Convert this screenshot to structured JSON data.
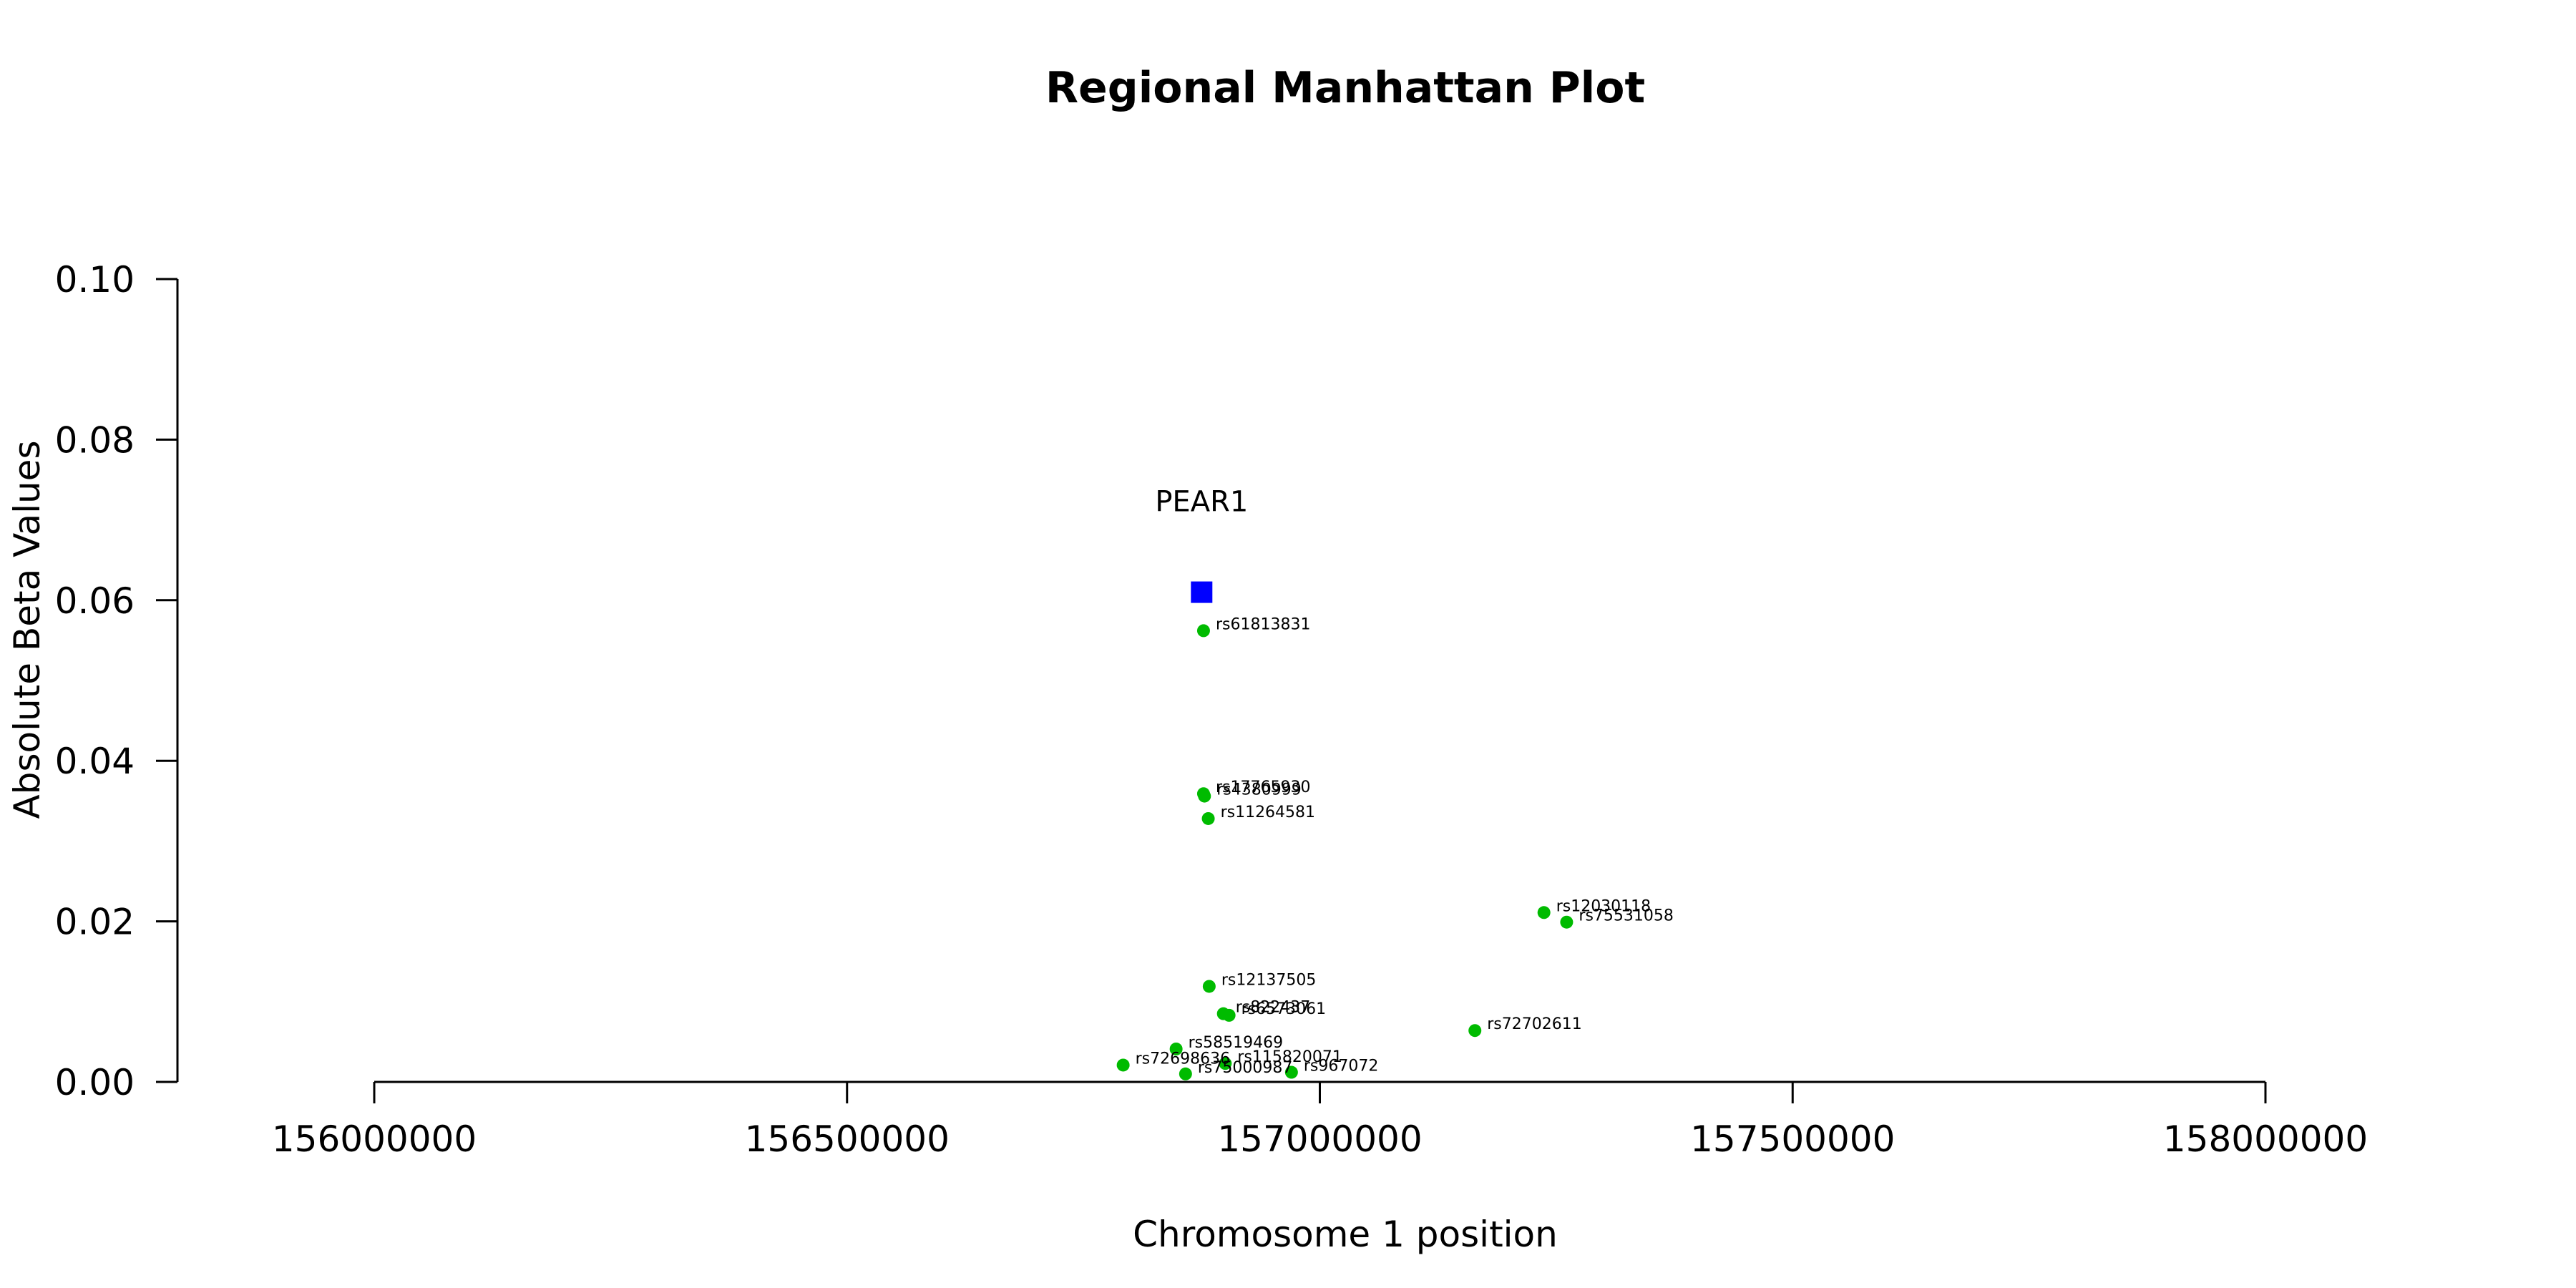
{
  "chart_data": {
    "type": "scatter",
    "title": "Regional Manhattan Plot",
    "xlabel": "Chromosome 1 position",
    "ylabel": "Absolute Beta Values",
    "xlim": [
      156000000,
      158000000
    ],
    "ylim": [
      0,
      0.1
    ],
    "x_ticks": [
      156000000,
      156500000,
      157000000,
      157500000,
      158000000
    ],
    "x_tick_labels": [
      "156000000",
      "156500000",
      "157000000",
      "157500000",
      "158000000"
    ],
    "y_ticks": [
      0,
      0.02,
      0.04,
      0.06,
      0.08,
      0.1
    ],
    "y_tick_labels": [
      "0.00",
      "0.02",
      "0.04",
      "0.06",
      "0.08",
      "0.10"
    ],
    "grid": false,
    "gene": {
      "label": "PEAR1",
      "x": 156875000,
      "y": 0.061,
      "color": "#0000ff",
      "marker": "square"
    },
    "snp_color": "#00bb00",
    "snps": [
      {
        "label": "rs61813831",
        "x": 156877000,
        "y": 0.0562
      },
      {
        "label": "rs17765930",
        "x": 156877000,
        "y": 0.0359
      },
      {
        "label": "rs4380999",
        "x": 156878000,
        "y": 0.0356
      },
      {
        "label": "rs11264581",
        "x": 156882000,
        "y": 0.0328
      },
      {
        "label": "rs12030118",
        "x": 157237000,
        "y": 0.0211
      },
      {
        "label": "rs75531058",
        "x": 157261000,
        "y": 0.0199
      },
      {
        "label": "rs12137505",
        "x": 156883000,
        "y": 0.0119
      },
      {
        "label": "rs822437",
        "x": 156898000,
        "y": 0.0085
      },
      {
        "label": "rs6573061",
        "x": 156904000,
        "y": 0.0083
      },
      {
        "label": "rs72702611",
        "x": 157164000,
        "y": 0.0064
      },
      {
        "label": "rs58519469",
        "x": 156848000,
        "y": 0.0041
      },
      {
        "label": "rs72698636",
        "x": 156792000,
        "y": 0.0021
      },
      {
        "label": "rs115820071",
        "x": 156900000,
        "y": 0.0023
      },
      {
        "label": "rs75000987",
        "x": 156858000,
        "y": 0.001
      },
      {
        "label": "rs967072",
        "x": 156970000,
        "y": 0.0012
      }
    ]
  }
}
